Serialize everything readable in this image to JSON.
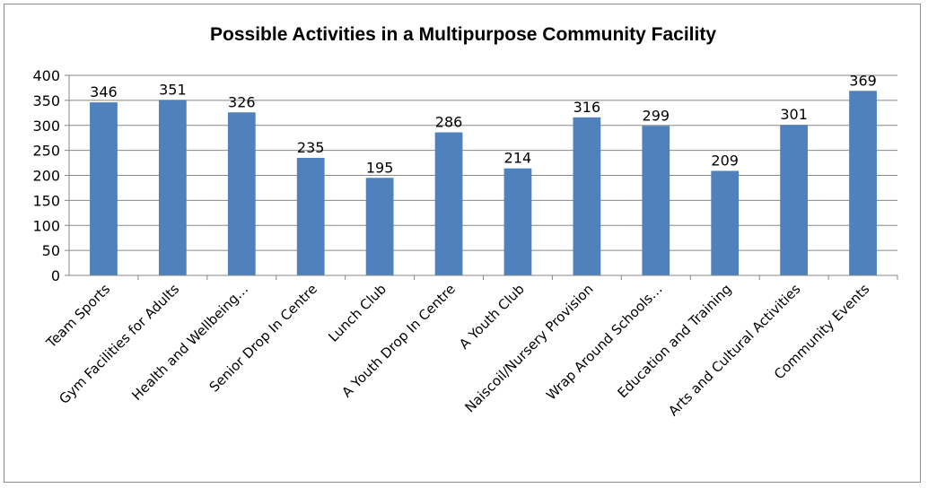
{
  "chart_data": {
    "type": "bar",
    "title": "Possible Activities in a Multipurpose Community Facility",
    "categories": [
      "Team Sports",
      "Gym Facilities for Adults",
      "Health and Wellbeing…",
      "Senior Drop In Centre",
      "Lunch Club",
      "A Youth Drop In Centre",
      "A Youth Club",
      "Naiscoil/Nursery Provision",
      "Wrap Around Schools…",
      "Education and Training",
      "Arts and Cultural Activities",
      "Community Events"
    ],
    "values": [
      346,
      351,
      326,
      235,
      195,
      286,
      214,
      316,
      299,
      209,
      301,
      369
    ],
    "ylim": [
      0,
      400
    ],
    "yticks": [
      0,
      50,
      100,
      150,
      200,
      250,
      300,
      350,
      400
    ],
    "grid": true,
    "legend": false,
    "colors": {
      "bar": "#4f81bd",
      "grid": "#878787",
      "axis": "#878787"
    }
  }
}
